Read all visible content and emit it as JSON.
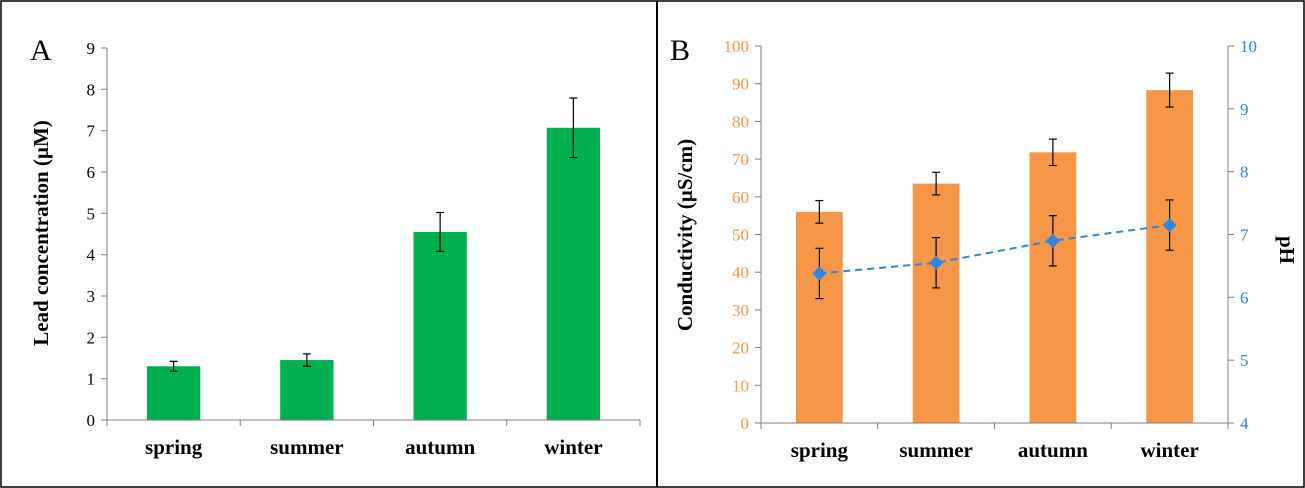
{
  "chart_data": [
    {
      "panel": "A",
      "type": "bar",
      "categories": [
        "spring",
        "summer",
        "autumn",
        "winter"
      ],
      "values": [
        1.3,
        1.45,
        4.55,
        7.07
      ],
      "errors": [
        0.12,
        0.15,
        0.47,
        0.72
      ],
      "title": "",
      "xlabel": "",
      "ylabel": "Lead concentration (µM)",
      "ylim": [
        0,
        9
      ],
      "yticks": [
        "0",
        "1",
        "2",
        "3",
        "4",
        "5",
        "6",
        "7",
        "8",
        "9"
      ],
      "color": "#00B050",
      "grid": false
    },
    {
      "panel": "B",
      "type": "bar",
      "categories": [
        "spring",
        "summer",
        "autumn",
        "winter"
      ],
      "values": [
        56,
        63.5,
        71.8,
        88.3
      ],
      "errors": [
        3,
        3,
        3.5,
        4.5
      ],
      "title": "",
      "xlabel": "",
      "ylabel": "Conductivity (µS/cm)",
      "ylim": [
        0,
        100
      ],
      "yticks": [
        "0",
        "10",
        "20",
        "30",
        "40",
        "50",
        "60",
        "70",
        "80",
        "90",
        "100"
      ],
      "color": "#F79646",
      "y2label": "pH",
      "y2lim": [
        4,
        10
      ],
      "y2ticks": [
        "4",
        "5",
        "6",
        "7",
        "8",
        "9",
        "10"
      ],
      "y2color": "#2E86DE",
      "line": {
        "type": "line",
        "style": "dashed",
        "marker": "diamond",
        "values": [
          6.38,
          6.55,
          6.9,
          7.15
        ],
        "errors": [
          0.4,
          0.4,
          0.4,
          0.4
        ]
      },
      "grid": false
    }
  ]
}
